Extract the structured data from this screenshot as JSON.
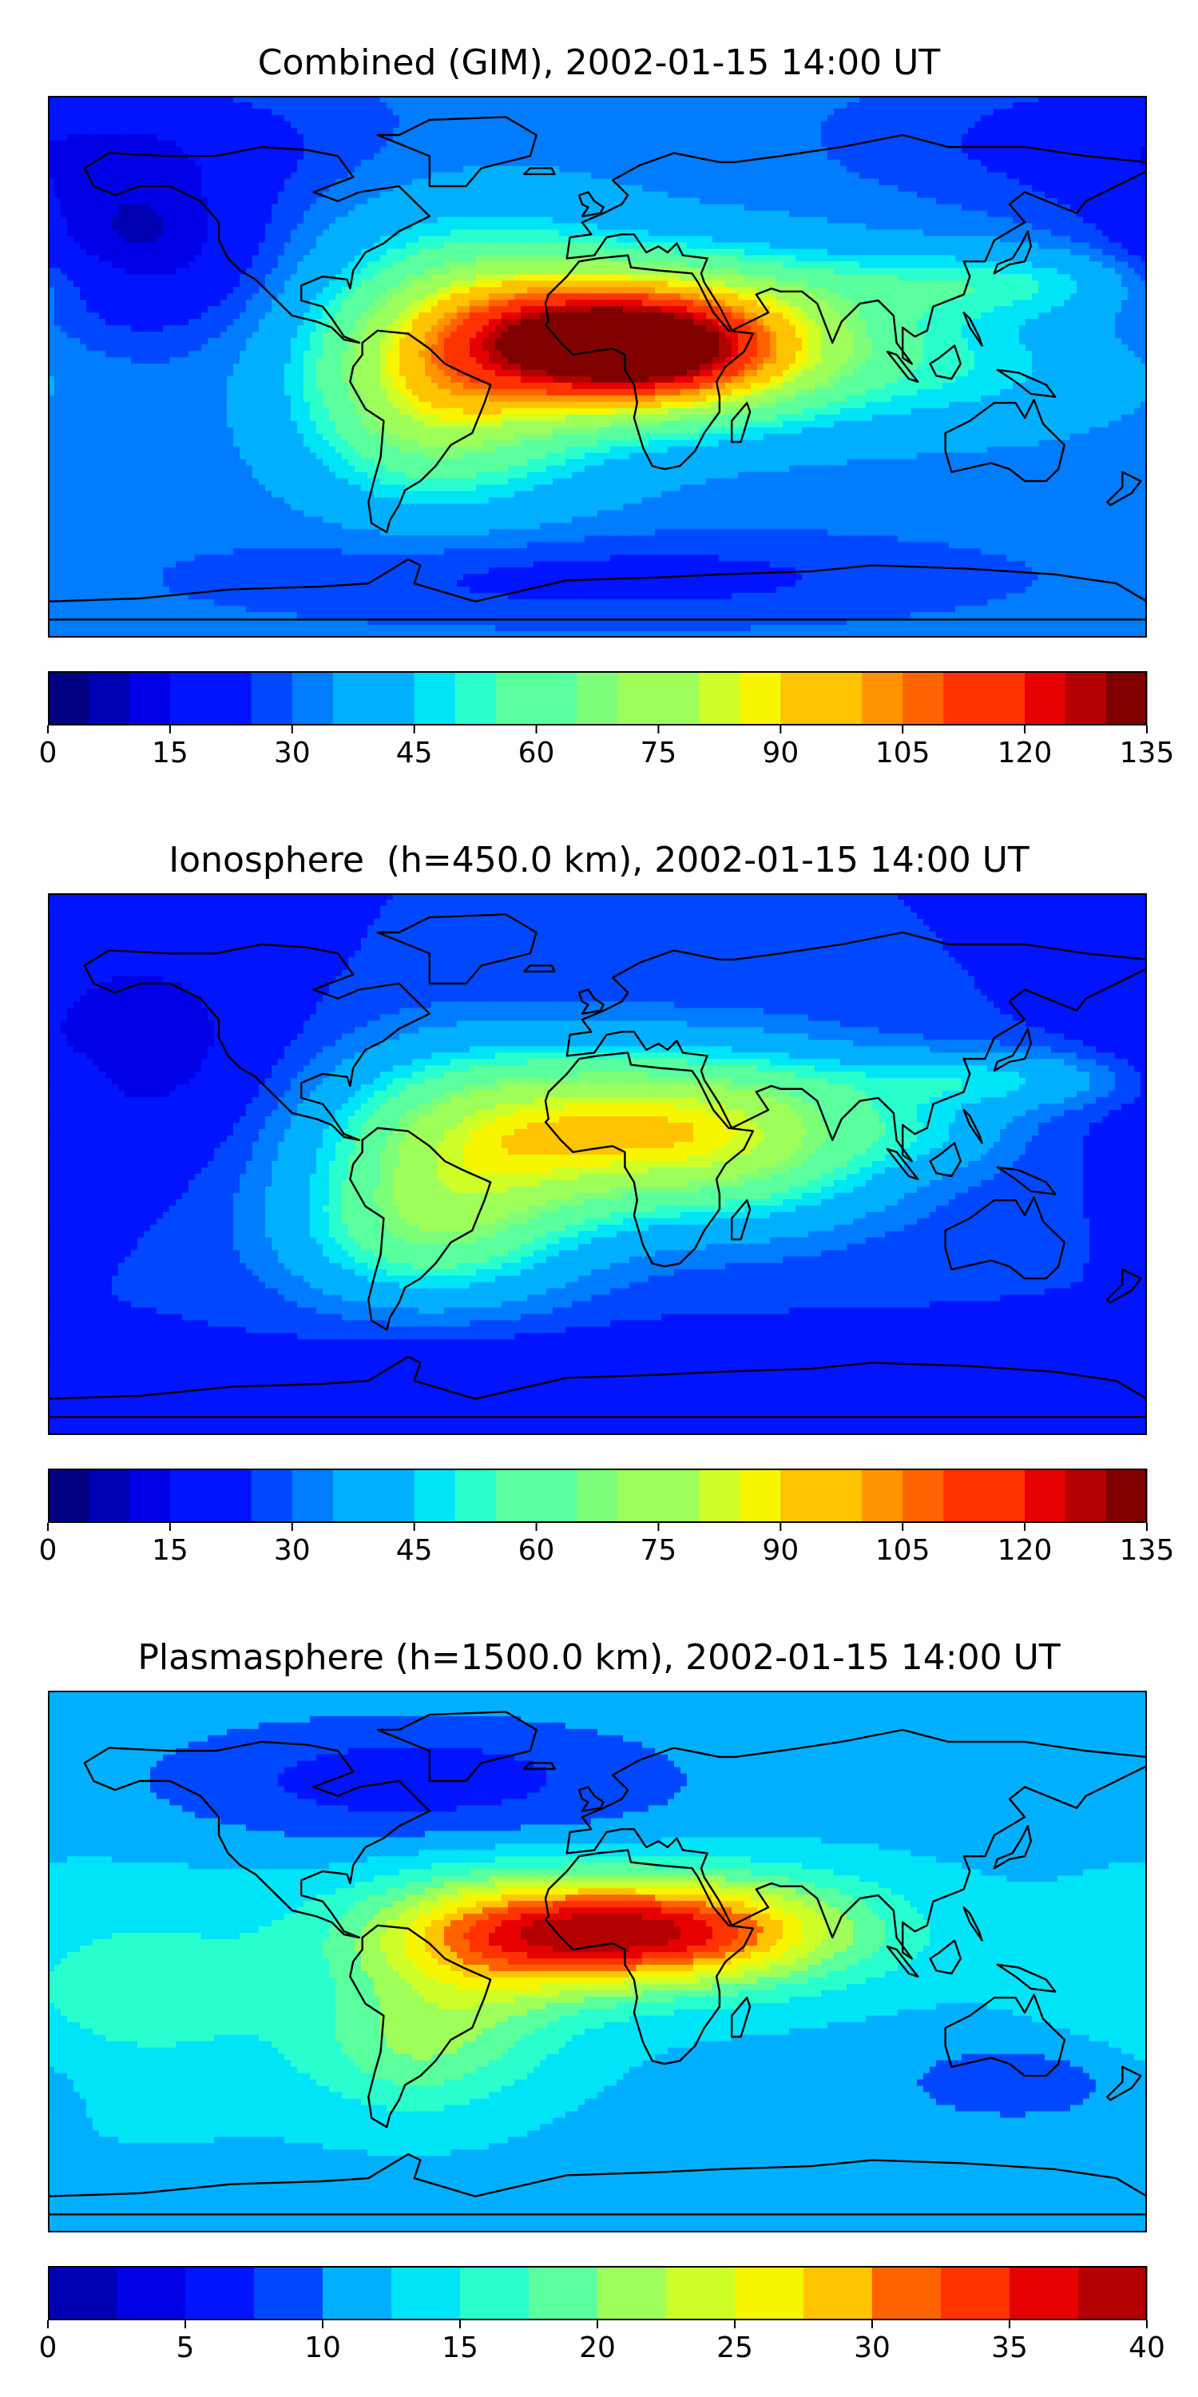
{
  "panels": [
    {
      "title": "Combined (GIM), 2002-01-15 14:00 UT",
      "colorbar": {
        "ticks": [
          "0",
          "15",
          "30",
          "45",
          "60",
          "75",
          "90",
          "105",
          "120",
          "135"
        ],
        "min": 0,
        "max": 135,
        "levels": 27
      },
      "field": {
        "min": 0,
        "max": 135,
        "background": 32,
        "levels": 27,
        "blobs": [
          {
            "lon": 10,
            "lat": 12,
            "amp": 70,
            "slon": 40,
            "slat": 14
          },
          {
            "lon": 18,
            "lat": -2,
            "amp": 38,
            "slon": 32,
            "slat": 12
          },
          {
            "lon": -40,
            "lat": 5,
            "amp": 45,
            "slon": 35,
            "slat": 28
          },
          {
            "lon": -60,
            "lat": -15,
            "amp": 18,
            "slon": 25,
            "slat": 20
          },
          {
            "lon": 45,
            "lat": 10,
            "amp": 22,
            "slon": 40,
            "slat": 20
          },
          {
            "lon": 130,
            "lat": 28,
            "amp": 18,
            "slon": 40,
            "slat": 8
          },
          {
            "lon": 120,
            "lat": 0,
            "amp": 14,
            "slon": 40,
            "slat": 15
          },
          {
            "lon": -150,
            "lat": 40,
            "amp": -22,
            "slon": 30,
            "slat": 20
          },
          {
            "lon": -170,
            "lat": 75,
            "amp": -14,
            "slon": 60,
            "slat": 15
          },
          {
            "lon": 0,
            "lat": -70,
            "amp": -10,
            "slon": 80,
            "slat": 10
          }
        ]
      }
    },
    {
      "title": "Ionosphere  (h=450.0 km), 2002-01-15 14:00 UT",
      "colorbar": {
        "ticks": [
          "0",
          "15",
          "30",
          "45",
          "60",
          "75",
          "90",
          "105",
          "120",
          "135"
        ],
        "min": 0,
        "max": 135,
        "levels": 27
      },
      "field": {
        "min": 0,
        "max": 135,
        "background": 25,
        "levels": 27,
        "blobs": [
          {
            "lon": 15,
            "lat": 12,
            "amp": 50,
            "slon": 50,
            "slat": 18
          },
          {
            "lon": -45,
            "lat": 0,
            "amp": 35,
            "slon": 35,
            "slat": 25
          },
          {
            "lon": -60,
            "lat": -25,
            "amp": 20,
            "slon": 30,
            "slat": 15
          },
          {
            "lon": 50,
            "lat": 5,
            "amp": 18,
            "slon": 35,
            "slat": 20
          },
          {
            "lon": 130,
            "lat": 28,
            "amp": 20,
            "slon": 35,
            "slat": 7
          },
          {
            "lon": 110,
            "lat": 10,
            "amp": 10,
            "slon": 20,
            "slat": 8
          },
          {
            "lon": -150,
            "lat": 40,
            "amp": -15,
            "slon": 30,
            "slat": 25
          },
          {
            "lon": 0,
            "lat": -70,
            "amp": -8,
            "slon": 80,
            "slat": 10
          }
        ]
      }
    },
    {
      "title": "Plasmasphere (h=1500.0 km), 2002-01-15 14:00 UT",
      "colorbar": {
        "ticks": [
          "0",
          "5",
          "10",
          "15",
          "20",
          "25",
          "30",
          "35",
          "40"
        ],
        "min": 0,
        "max": 40,
        "levels": 16
      },
      "field": {
        "min": 0,
        "max": 40,
        "background": 12,
        "levels": 16,
        "blobs": [
          {
            "lon": 5,
            "lat": 10,
            "amp": 22,
            "slon": 45,
            "slat": 12
          },
          {
            "lon": -40,
            "lat": 0,
            "amp": 8,
            "slon": 30,
            "slat": 20
          },
          {
            "lon": -60,
            "lat": -30,
            "amp": 6,
            "slon": 25,
            "slat": 15
          },
          {
            "lon": 40,
            "lat": 10,
            "amp": 6,
            "slon": 40,
            "slat": 14
          },
          {
            "lon": -150,
            "lat": -10,
            "amp": 4,
            "slon": 40,
            "slat": 25
          },
          {
            "lon": -60,
            "lat": 60,
            "amp": -6,
            "slon": 60,
            "slat": 15
          },
          {
            "lon": 140,
            "lat": -40,
            "amp": -4,
            "slon": 30,
            "slat": 10
          }
        ]
      }
    }
  ],
  "colors": {
    "jet": [
      "#000080",
      "#0000b3",
      "#0000e6",
      "#0014ff",
      "#0048ff",
      "#007cff",
      "#00b0ff",
      "#00e4f8",
      "#29ffce",
      "#5aff9e",
      "#7dff7a",
      "#9eff5a",
      "#ceff29",
      "#f8f500",
      "#ffc400",
      "#ff9400",
      "#ff6300",
      "#ff3200",
      "#e60000",
      "#b30000",
      "#800000"
    ],
    "coast": "#000000",
    "frame": "#000000"
  }
}
